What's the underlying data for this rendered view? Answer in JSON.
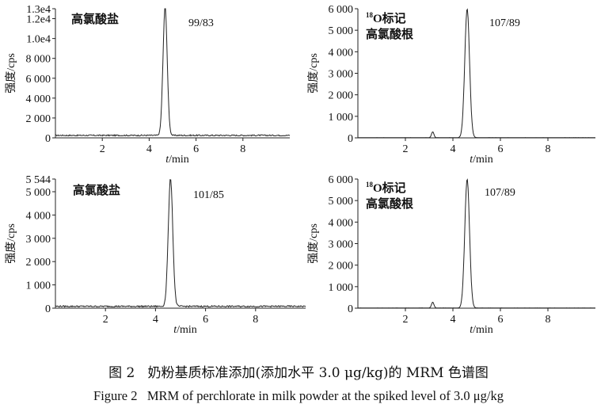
{
  "chart_data": [
    {
      "type": "line",
      "id": "p1",
      "compound_label": "高氯酸盐",
      "transition": "99/83",
      "ylabel": "强度/cps",
      "xlabel_var": "t",
      "xlabel_unit": "/min",
      "xlim": [
        0,
        10
      ],
      "ylim": [
        0,
        13000
      ],
      "x_ticks": [
        2,
        4,
        6,
        8
      ],
      "y_ticks": [
        0,
        2000,
        4000,
        6000,
        8000,
        10000,
        12000,
        13000
      ],
      "y_tick_labels": [
        "0",
        "2 000",
        "4 000",
        "6 000",
        "8 000",
        "1.0e4",
        "1.2e4",
        "1.3e4"
      ],
      "baseline": 250,
      "noise": 60,
      "peaks": [
        {
          "x": 4.68,
          "height": 12900,
          "width": 0.09
        }
      ]
    },
    {
      "type": "line",
      "id": "p2",
      "compound_label": "18O标记高氯酸根",
      "label_prefix_sup": "18",
      "label_line1": "O标记",
      "label_line2": "高氯酸根",
      "transition": "107/89",
      "ylabel": "强度/cps",
      "xlabel_var": "t",
      "xlabel_unit": "/min",
      "xlim": [
        0,
        10
      ],
      "ylim": [
        0,
        6000
      ],
      "x_ticks": [
        2,
        4,
        6,
        8
      ],
      "y_ticks": [
        0,
        1000,
        2000,
        3000,
        4000,
        5000,
        6000
      ],
      "y_tick_labels": [
        "0",
        "1 000",
        "2 000",
        "3 000",
        "4 000",
        "5 000",
        "6 000"
      ],
      "baseline": 10,
      "noise": 4,
      "peaks": [
        {
          "x": 3.15,
          "height": 270,
          "width": 0.05
        },
        {
          "x": 4.6,
          "height": 6000,
          "width": 0.1
        }
      ]
    },
    {
      "type": "line",
      "id": "p3",
      "compound_label": "高氯酸盐",
      "transition": "101/85",
      "ylabel": "强度/cps",
      "xlabel_var": "t",
      "xlabel_unit": "/min",
      "xlim": [
        0,
        10
      ],
      "ylim": [
        0,
        5544
      ],
      "x_ticks": [
        2,
        4,
        6,
        8
      ],
      "y_ticks": [
        0,
        1000,
        2000,
        3000,
        4000,
        5000,
        5544
      ],
      "y_tick_labels": [
        "0",
        "1 000",
        "2 000",
        "3 000",
        "4 000",
        "5 000",
        "5 544"
      ],
      "baseline": 80,
      "noise": 30,
      "peaks": [
        {
          "x": 4.6,
          "height": 5500,
          "width": 0.09
        }
      ]
    },
    {
      "type": "line",
      "id": "p4",
      "compound_label": "18O标记高氯酸根",
      "label_prefix_sup": "18",
      "label_line1": "O标记",
      "label_line2": "高氯酸根",
      "transition": "107/89",
      "ylabel": "强度/cps",
      "xlabel_var": "t",
      "xlabel_unit": "/min",
      "xlim": [
        0,
        10
      ],
      "ylim": [
        0,
        6000
      ],
      "x_ticks": [
        2,
        4,
        6,
        8
      ],
      "y_ticks": [
        0,
        1000,
        2000,
        3000,
        4000,
        5000,
        6000
      ],
      "y_tick_labels": [
        "0",
        "1 000",
        "2 000",
        "3 000",
        "4 000",
        "5 000",
        "6 000"
      ],
      "baseline": 10,
      "noise": 4,
      "peaks": [
        {
          "x": 3.15,
          "height": 270,
          "width": 0.05
        },
        {
          "x": 4.6,
          "height": 6000,
          "width": 0.1
        }
      ]
    }
  ],
  "caption": {
    "cn_prefix": "图 2",
    "cn_text": "奶粉基质标准添加(添加水平 3.0 μg/kg)的 MRM 色谱图",
    "en_prefix": "Figure 2",
    "en_text": "MRM of perchlorate in milk powder at the spiked level of 3.0 μg/kg"
  },
  "colors": {
    "line": "#222222",
    "axis": "#222222"
  }
}
